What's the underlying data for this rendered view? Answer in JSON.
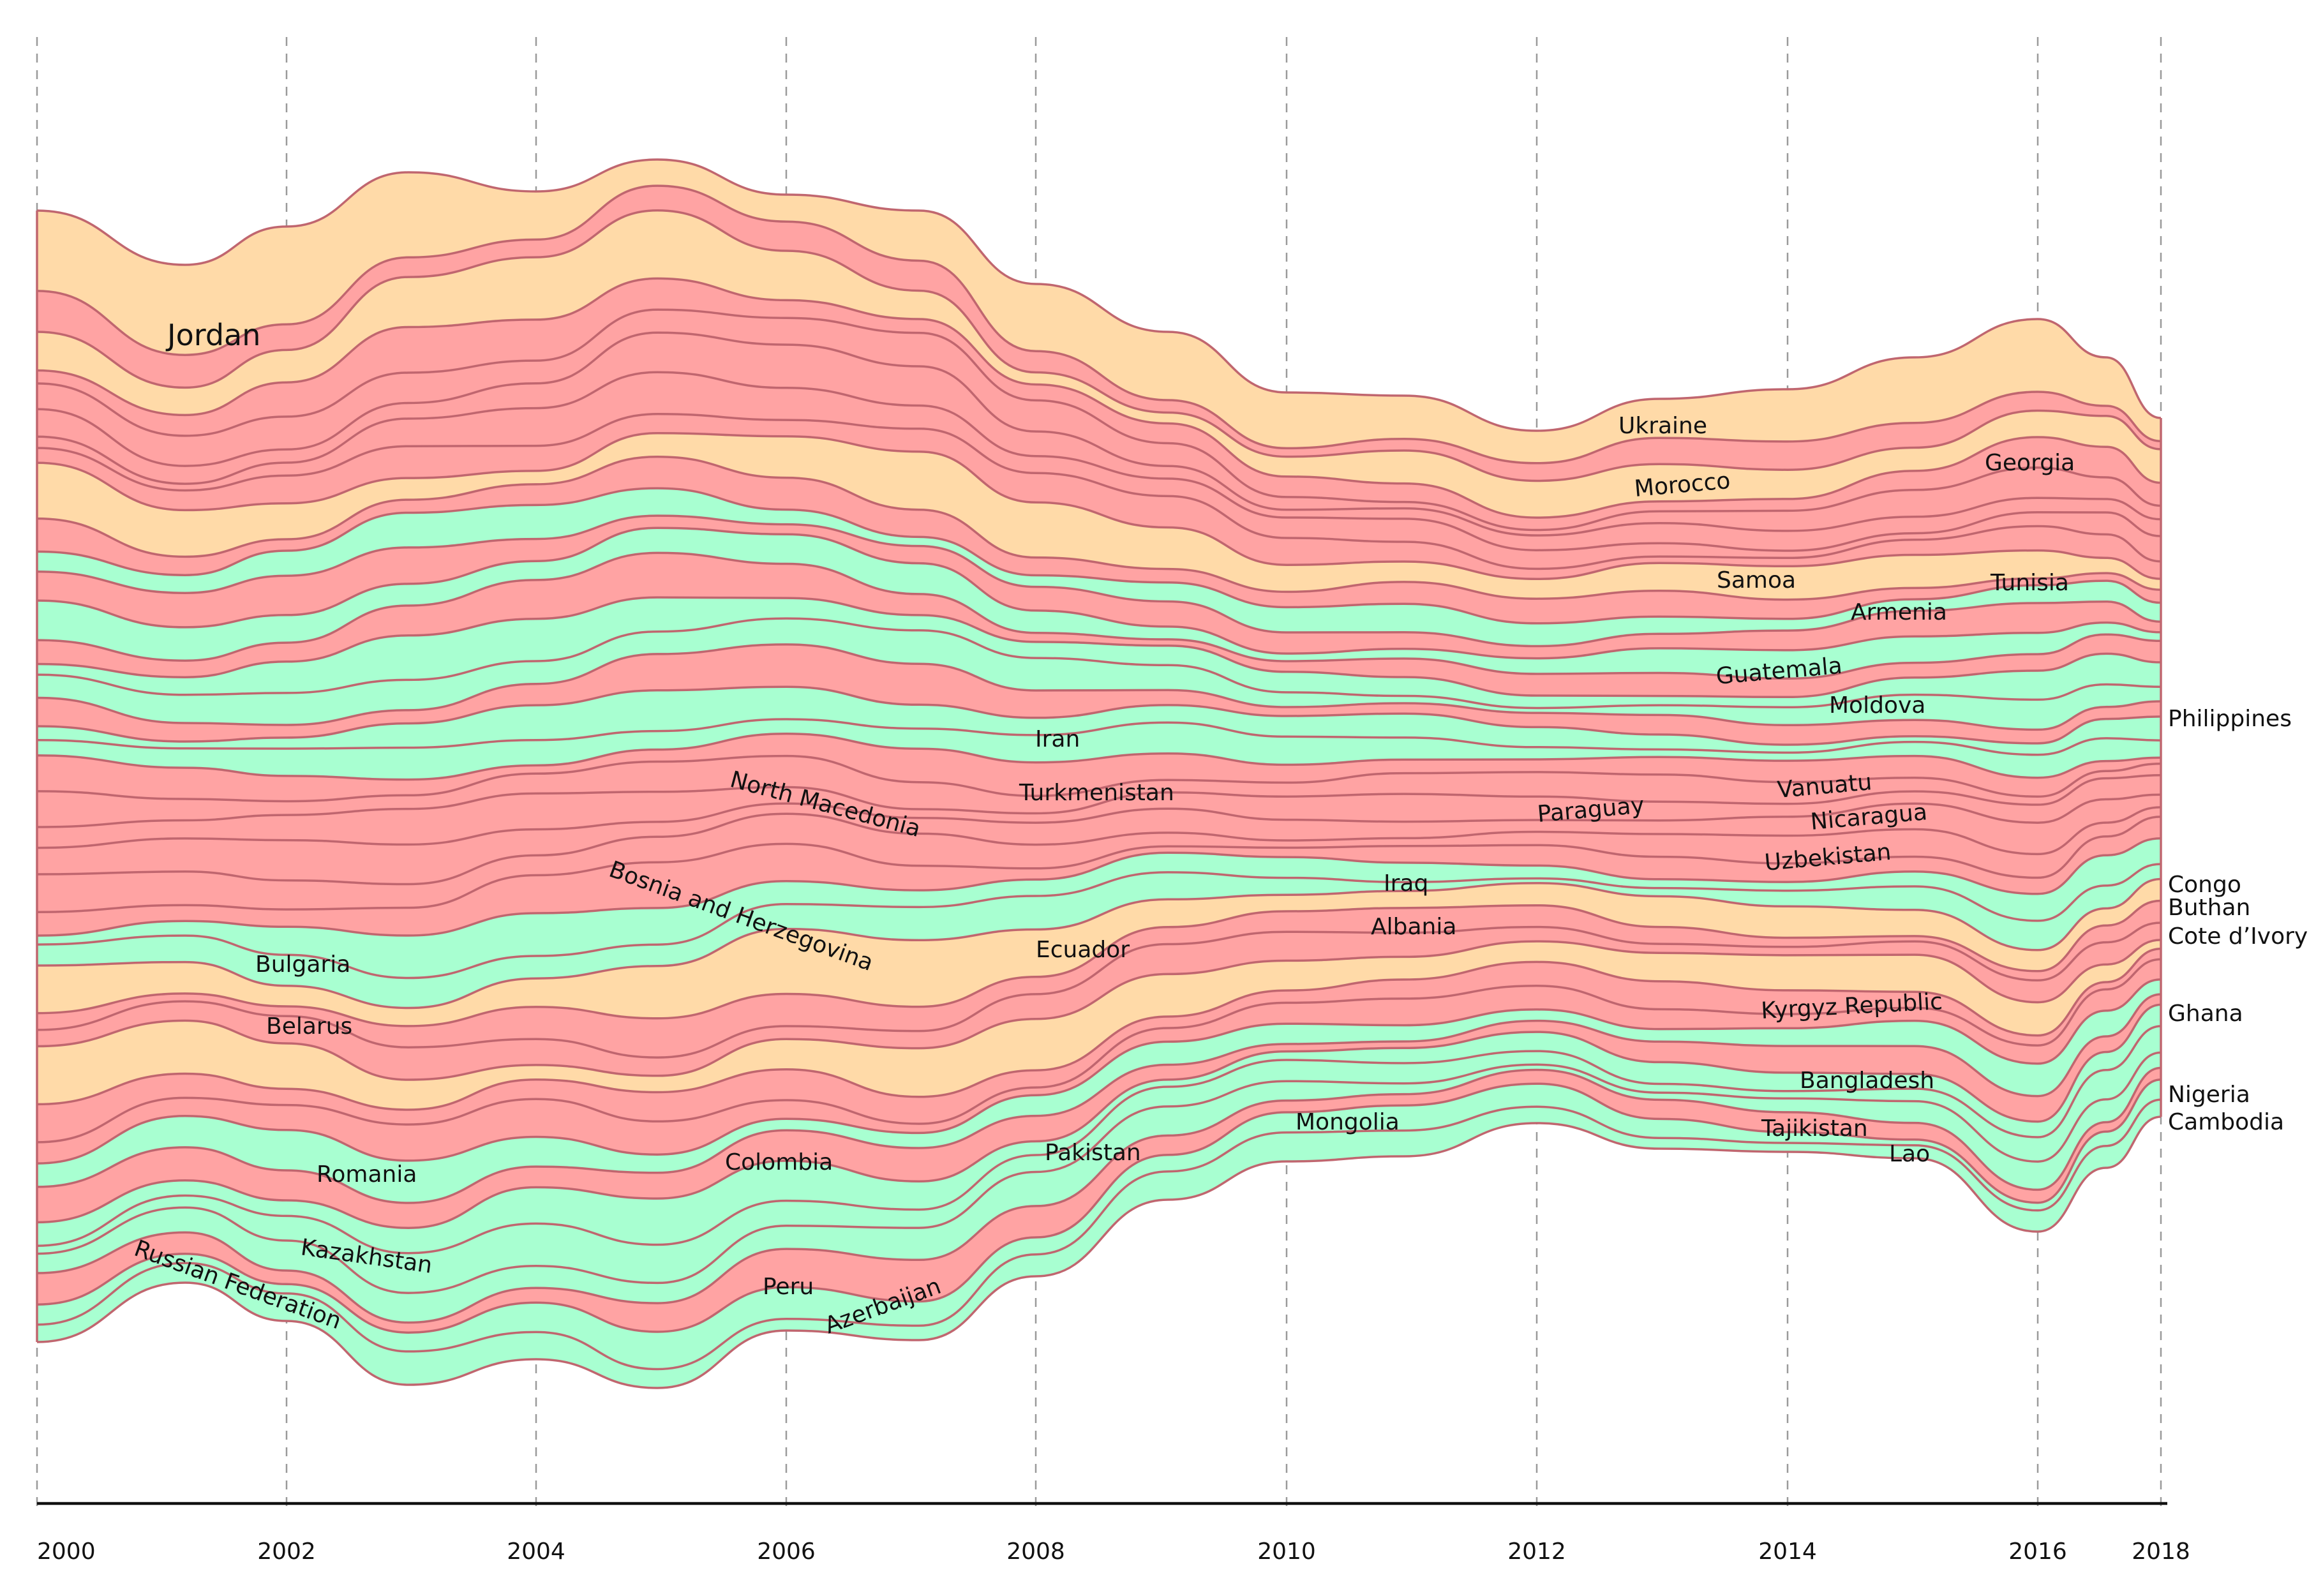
{
  "chart_data": {
    "type": "area",
    "title": "",
    "xlabel": "",
    "ylabel": "",
    "x": [
      2000,
      2002,
      2004,
      2006,
      2008,
      2010,
      2012,
      2014,
      2016,
      2018
    ],
    "x_tick_labels": [
      "2000",
      "2002",
      "2004",
      "2006",
      "2008",
      "2010",
      "2012",
      "2014",
      "2016",
      "2018"
    ],
    "grid": {
      "vertical": true,
      "dashed": true
    },
    "colors": {
      "red_band": "#ffa3a3",
      "green_band": "#a8ffd1",
      "orange_band": "#ffdaa8",
      "stroke": "#c0666f"
    },
    "series": [
      {
        "name": "Jordan",
        "color": "orange"
      },
      {
        "name": "Bulgaria",
        "color": "red"
      },
      {
        "name": "Belarus",
        "color": "orange"
      },
      {
        "name": "Romania",
        "color": "red"
      },
      {
        "name": "Kazakhstan",
        "color": "red"
      },
      {
        "name": "Russian Federation",
        "color": "red"
      },
      {
        "name": "North Macedonia",
        "color": "red"
      },
      {
        "name": "Bosnia and Herzegovina",
        "color": "red"
      },
      {
        "name": "Colombia",
        "color": "orange"
      },
      {
        "name": "Peru",
        "color": "red"
      },
      {
        "name": "Azerbaijan",
        "color": "green"
      },
      {
        "name": "Iran",
        "color": "red"
      },
      {
        "name": "Turkmenistan",
        "color": "green"
      },
      {
        "name": "Ecuador",
        "color": "red"
      },
      {
        "name": "Pakistan",
        "color": "green"
      },
      {
        "name": "Mongolia",
        "color": "green"
      },
      {
        "name": "Iraq",
        "color": "red"
      },
      {
        "name": "Albania",
        "color": "green"
      },
      {
        "name": "Ukraine",
        "color": "green"
      },
      {
        "name": "Morocco",
        "color": "red"
      },
      {
        "name": "Paraguay",
        "color": "red"
      },
      {
        "name": "Samoa",
        "color": "red"
      },
      {
        "name": "Guatemala",
        "color": "red"
      },
      {
        "name": "Vanuatu",
        "color": "red"
      },
      {
        "name": "Nicaragua",
        "color": "red"
      },
      {
        "name": "Uzbekistan",
        "color": "green"
      },
      {
        "name": "Kyrgyz Republic",
        "color": "green"
      },
      {
        "name": "Bangladesh",
        "color": "orange"
      },
      {
        "name": "Tajikistan",
        "color": "red"
      },
      {
        "name": "Lao",
        "color": "red"
      },
      {
        "name": "Georgia",
        "color": "orange"
      },
      {
        "name": "Tunisia",
        "color": "red"
      },
      {
        "name": "Armenia",
        "color": "red"
      },
      {
        "name": "Moldova",
        "color": "green"
      },
      {
        "name": "Philippines",
        "color": "red"
      },
      {
        "name": "Congo",
        "color": "green"
      },
      {
        "name": "Buthan",
        "color": "green"
      },
      {
        "name": "Cote d’Ivory",
        "color": "green"
      },
      {
        "name": "Ghana",
        "color": "red"
      },
      {
        "name": "Nigeria",
        "color": "green"
      },
      {
        "name": "Cambodia",
        "color": "green"
      }
    ]
  }
}
